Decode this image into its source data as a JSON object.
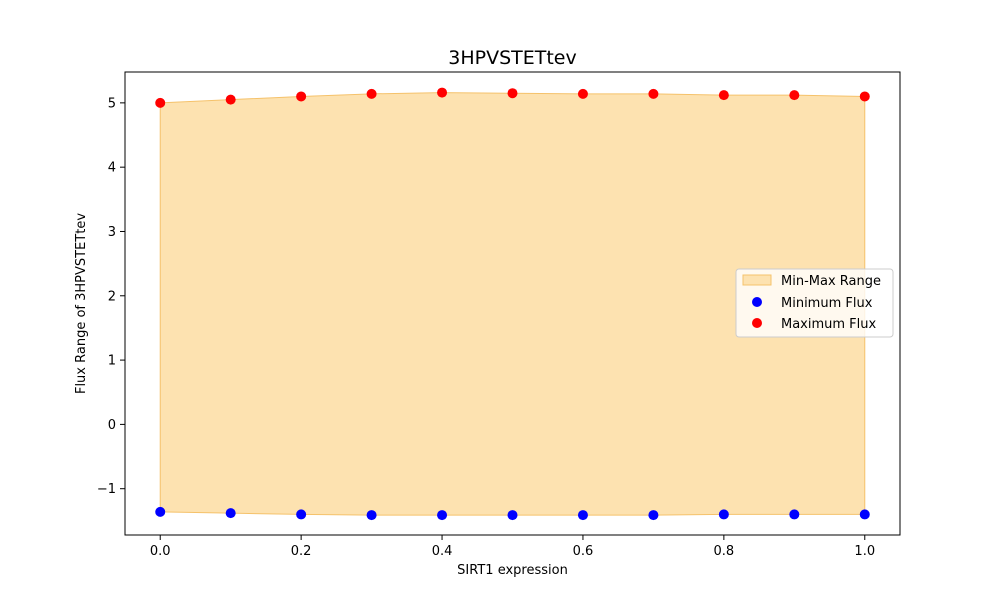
{
  "chart_data": {
    "type": "scatter",
    "title": "3HPVSTETtev",
    "xlabel": "SIRT1 expression",
    "ylabel": "Flux Range of 3HPVSTETtev",
    "xlim": [
      -0.05,
      1.05
    ],
    "ylim": [
      -1.72,
      5.48
    ],
    "x": [
      0.0,
      0.1,
      0.2,
      0.3,
      0.4,
      0.5,
      0.6,
      0.7,
      0.8,
      0.9,
      1.0
    ],
    "x_ticks": [
      0.0,
      0.2,
      0.4,
      0.6,
      0.8,
      1.0
    ],
    "x_tick_labels": [
      "0.0",
      "0.2",
      "0.4",
      "0.6",
      "0.8",
      "1.0"
    ],
    "y_ticks": [
      -1,
      0,
      1,
      2,
      3,
      4,
      5
    ],
    "y_tick_labels": [
      "−1",
      "0",
      "1",
      "2",
      "3",
      "4",
      "5"
    ],
    "grid": false,
    "legend_position": "center-right",
    "range_band": {
      "name": "Min-Max Range",
      "color": "#fde2b0",
      "edge_color": "#f5c26b"
    },
    "series": [
      {
        "name": "Minimum Flux",
        "color": "#0000ff",
        "values": [
          -1.36,
          -1.38,
          -1.4,
          -1.41,
          -1.41,
          -1.41,
          -1.41,
          -1.41,
          -1.4,
          -1.4,
          -1.4
        ]
      },
      {
        "name": "Maximum Flux",
        "color": "#ff0000",
        "values": [
          5.0,
          5.05,
          5.1,
          5.14,
          5.16,
          5.15,
          5.14,
          5.14,
          5.12,
          5.12,
          5.1
        ]
      }
    ]
  }
}
